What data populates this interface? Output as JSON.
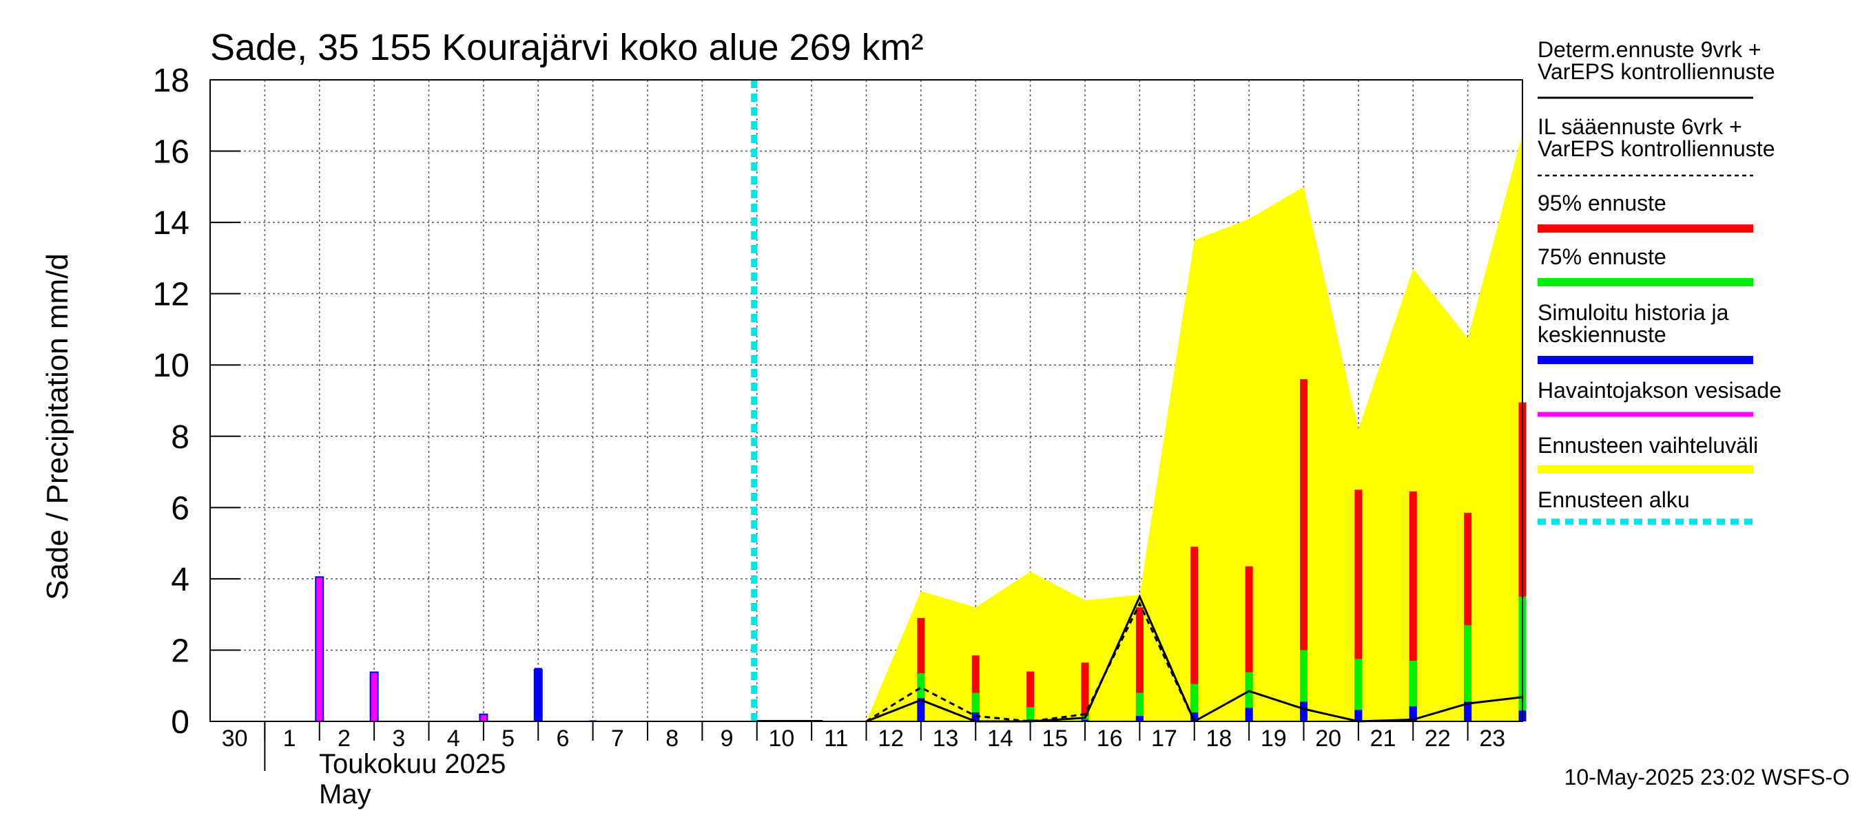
{
  "chart_data": {
    "type": "bar",
    "title": "Sade, 35 155 Kourajärvi koko alue 269 km²",
    "ylabel": "Sade / Precipitation   mm/d",
    "ylim": [
      0,
      18
    ],
    "yticks": [
      0,
      2,
      4,
      6,
      8,
      10,
      12,
      14,
      16,
      18
    ],
    "grid": true,
    "legend_placement": "right",
    "x_day_labels": [
      "30",
      "1",
      "2",
      "3",
      "4",
      "5",
      "6",
      "7",
      "8",
      "9",
      "10",
      "11",
      "12",
      "13",
      "14",
      "15",
      "16",
      "17",
      "18",
      "19",
      "20",
      "21",
      "22",
      "23"
    ],
    "month_label_fi": "Toukokuu  2025",
    "month_label_en": "May",
    "forecast_start_day": "10",
    "observed_precip": {
      "days": [
        "2",
        "3",
        "5",
        "6"
      ],
      "values": [
        4.05,
        1.38,
        0.2,
        1.45
      ]
    },
    "simulated_history": {
      "days": [
        "6",
        "7",
        "8",
        "9"
      ],
      "values": [
        1.5,
        0.03,
        0.02,
        0.02
      ]
    },
    "forecast": {
      "days": [
        "13",
        "14",
        "15",
        "16",
        "17",
        "18",
        "19",
        "20",
        "21",
        "22",
        "23",
        "24"
      ],
      "p95": [
        2.9,
        1.85,
        1.4,
        1.65,
        3.2,
        4.9,
        4.35,
        9.6,
        6.5,
        6.45,
        5.85,
        8.95
      ],
      "p75": [
        1.35,
        0.8,
        0.4,
        0.15,
        0.8,
        1.05,
        1.38,
        2.0,
        1.75,
        1.7,
        2.7,
        3.5
      ],
      "median": [
        0.65,
        0.25,
        0.05,
        0.05,
        0.15,
        0.25,
        0.38,
        0.55,
        0.32,
        0.42,
        0.55,
        0.3
      ]
    },
    "range_band": {
      "days": [
        "12",
        "13",
        "14",
        "15",
        "16",
        "17",
        "18",
        "19",
        "20",
        "21",
        "22",
        "23",
        "24"
      ],
      "upper": [
        0.0,
        3.65,
        3.2,
        4.2,
        3.4,
        3.55,
        13.5,
        14.1,
        15.0,
        8.2,
        12.7,
        10.75,
        16.5
      ],
      "lower": [
        0.0,
        0.0,
        0.0,
        0.0,
        0.0,
        0.0,
        0.0,
        0.0,
        0.0,
        0.0,
        0.0,
        0.0,
        0.0
      ]
    },
    "deterministic_line": {
      "days": [
        "12",
        "13",
        "14",
        "15",
        "16",
        "17",
        "18",
        "19",
        "20",
        "21",
        "22",
        "23",
        "24"
      ],
      "values": [
        0.0,
        0.6,
        0.0,
        0.0,
        0.1,
        3.5,
        0.0,
        0.85,
        0.35,
        0.0,
        0.05,
        0.5,
        0.68
      ]
    },
    "il_line": {
      "days": [
        "12",
        "13",
        "14",
        "15",
        "16",
        "17",
        "18"
      ],
      "values": [
        0.0,
        0.95,
        0.15,
        0.0,
        0.2,
        3.3,
        0.0
      ]
    },
    "legend": [
      {
        "label": "Determ.ennuste 9vrk +\nVarEPS kontrolliennuste",
        "style": "line",
        "color": "#000000"
      },
      {
        "label": "IL sääennuste 6vrk  +\n  VarEPS kontrolliennuste",
        "style": "dashed",
        "color": "#000000"
      },
      {
        "label": "95% ennuste",
        "style": "thick",
        "color": "#ff0000"
      },
      {
        "label": "75% ennuste",
        "style": "thick",
        "color": "#00ee00"
      },
      {
        "label": "Simuloitu historia ja\nkeskiennuste",
        "style": "thick",
        "color": "#0000ff"
      },
      {
        "label": "Havaintojakson vesisade",
        "style": "medium",
        "color": "#ff00ff"
      },
      {
        "label": "Ennusteen vaihteluväli",
        "style": "thick",
        "color": "#ffff00"
      },
      {
        "label": "Ennusteen alku",
        "style": "dotted",
        "color": "#00e5e5"
      }
    ],
    "footer": "10-May-2025 23:02 WSFS-O"
  }
}
